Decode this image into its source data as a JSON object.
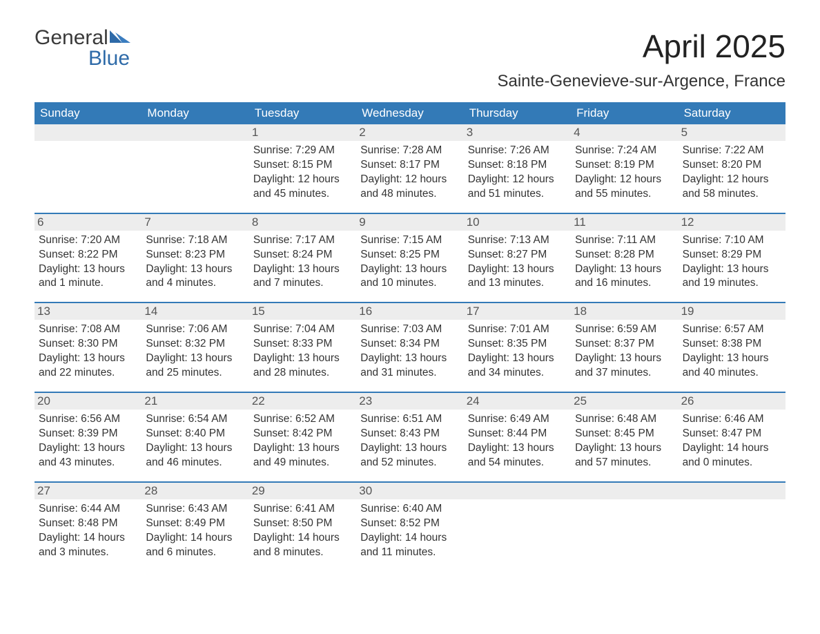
{
  "logo": {
    "word1": "General",
    "word2": "Blue",
    "mark_color": "#2e6aa8"
  },
  "title": "April 2025",
  "location": "Sainte-Genevieve-sur-Argence, France",
  "header_bg": "#337ab7",
  "header_text_color": "#ffffff",
  "date_bar_bg": "#ededed",
  "text_color": "#333333",
  "day_names": [
    "Sunday",
    "Monday",
    "Tuesday",
    "Wednesday",
    "Thursday",
    "Friday",
    "Saturday"
  ],
  "weeks": [
    [
      {
        "date": "",
        "sunrise": "",
        "sunset": "",
        "daylight": ""
      },
      {
        "date": "",
        "sunrise": "",
        "sunset": "",
        "daylight": ""
      },
      {
        "date": "1",
        "sunrise": "Sunrise: 7:29 AM",
        "sunset": "Sunset: 8:15 PM",
        "daylight": "Daylight: 12 hours and 45 minutes."
      },
      {
        "date": "2",
        "sunrise": "Sunrise: 7:28 AM",
        "sunset": "Sunset: 8:17 PM",
        "daylight": "Daylight: 12 hours and 48 minutes."
      },
      {
        "date": "3",
        "sunrise": "Sunrise: 7:26 AM",
        "sunset": "Sunset: 8:18 PM",
        "daylight": "Daylight: 12 hours and 51 minutes."
      },
      {
        "date": "4",
        "sunrise": "Sunrise: 7:24 AM",
        "sunset": "Sunset: 8:19 PM",
        "daylight": "Daylight: 12 hours and 55 minutes."
      },
      {
        "date": "5",
        "sunrise": "Sunrise: 7:22 AM",
        "sunset": "Sunset: 8:20 PM",
        "daylight": "Daylight: 12 hours and 58 minutes."
      }
    ],
    [
      {
        "date": "6",
        "sunrise": "Sunrise: 7:20 AM",
        "sunset": "Sunset: 8:22 PM",
        "daylight": "Daylight: 13 hours and 1 minute."
      },
      {
        "date": "7",
        "sunrise": "Sunrise: 7:18 AM",
        "sunset": "Sunset: 8:23 PM",
        "daylight": "Daylight: 13 hours and 4 minutes."
      },
      {
        "date": "8",
        "sunrise": "Sunrise: 7:17 AM",
        "sunset": "Sunset: 8:24 PM",
        "daylight": "Daylight: 13 hours and 7 minutes."
      },
      {
        "date": "9",
        "sunrise": "Sunrise: 7:15 AM",
        "sunset": "Sunset: 8:25 PM",
        "daylight": "Daylight: 13 hours and 10 minutes."
      },
      {
        "date": "10",
        "sunrise": "Sunrise: 7:13 AM",
        "sunset": "Sunset: 8:27 PM",
        "daylight": "Daylight: 13 hours and 13 minutes."
      },
      {
        "date": "11",
        "sunrise": "Sunrise: 7:11 AM",
        "sunset": "Sunset: 8:28 PM",
        "daylight": "Daylight: 13 hours and 16 minutes."
      },
      {
        "date": "12",
        "sunrise": "Sunrise: 7:10 AM",
        "sunset": "Sunset: 8:29 PM",
        "daylight": "Daylight: 13 hours and 19 minutes."
      }
    ],
    [
      {
        "date": "13",
        "sunrise": "Sunrise: 7:08 AM",
        "sunset": "Sunset: 8:30 PM",
        "daylight": "Daylight: 13 hours and 22 minutes."
      },
      {
        "date": "14",
        "sunrise": "Sunrise: 7:06 AM",
        "sunset": "Sunset: 8:32 PM",
        "daylight": "Daylight: 13 hours and 25 minutes."
      },
      {
        "date": "15",
        "sunrise": "Sunrise: 7:04 AM",
        "sunset": "Sunset: 8:33 PM",
        "daylight": "Daylight: 13 hours and 28 minutes."
      },
      {
        "date": "16",
        "sunrise": "Sunrise: 7:03 AM",
        "sunset": "Sunset: 8:34 PM",
        "daylight": "Daylight: 13 hours and 31 minutes."
      },
      {
        "date": "17",
        "sunrise": "Sunrise: 7:01 AM",
        "sunset": "Sunset: 8:35 PM",
        "daylight": "Daylight: 13 hours and 34 minutes."
      },
      {
        "date": "18",
        "sunrise": "Sunrise: 6:59 AM",
        "sunset": "Sunset: 8:37 PM",
        "daylight": "Daylight: 13 hours and 37 minutes."
      },
      {
        "date": "19",
        "sunrise": "Sunrise: 6:57 AM",
        "sunset": "Sunset: 8:38 PM",
        "daylight": "Daylight: 13 hours and 40 minutes."
      }
    ],
    [
      {
        "date": "20",
        "sunrise": "Sunrise: 6:56 AM",
        "sunset": "Sunset: 8:39 PM",
        "daylight": "Daylight: 13 hours and 43 minutes."
      },
      {
        "date": "21",
        "sunrise": "Sunrise: 6:54 AM",
        "sunset": "Sunset: 8:40 PM",
        "daylight": "Daylight: 13 hours and 46 minutes."
      },
      {
        "date": "22",
        "sunrise": "Sunrise: 6:52 AM",
        "sunset": "Sunset: 8:42 PM",
        "daylight": "Daylight: 13 hours and 49 minutes."
      },
      {
        "date": "23",
        "sunrise": "Sunrise: 6:51 AM",
        "sunset": "Sunset: 8:43 PM",
        "daylight": "Daylight: 13 hours and 52 minutes."
      },
      {
        "date": "24",
        "sunrise": "Sunrise: 6:49 AM",
        "sunset": "Sunset: 8:44 PM",
        "daylight": "Daylight: 13 hours and 54 minutes."
      },
      {
        "date": "25",
        "sunrise": "Sunrise: 6:48 AM",
        "sunset": "Sunset: 8:45 PM",
        "daylight": "Daylight: 13 hours and 57 minutes."
      },
      {
        "date": "26",
        "sunrise": "Sunrise: 6:46 AM",
        "sunset": "Sunset: 8:47 PM",
        "daylight": "Daylight: 14 hours and 0 minutes."
      }
    ],
    [
      {
        "date": "27",
        "sunrise": "Sunrise: 6:44 AM",
        "sunset": "Sunset: 8:48 PM",
        "daylight": "Daylight: 14 hours and 3 minutes."
      },
      {
        "date": "28",
        "sunrise": "Sunrise: 6:43 AM",
        "sunset": "Sunset: 8:49 PM",
        "daylight": "Daylight: 14 hours and 6 minutes."
      },
      {
        "date": "29",
        "sunrise": "Sunrise: 6:41 AM",
        "sunset": "Sunset: 8:50 PM",
        "daylight": "Daylight: 14 hours and 8 minutes."
      },
      {
        "date": "30",
        "sunrise": "Sunrise: 6:40 AM",
        "sunset": "Sunset: 8:52 PM",
        "daylight": "Daylight: 14 hours and 11 minutes."
      },
      {
        "date": "",
        "sunrise": "",
        "sunset": "",
        "daylight": ""
      },
      {
        "date": "",
        "sunrise": "",
        "sunset": "",
        "daylight": ""
      },
      {
        "date": "",
        "sunrise": "",
        "sunset": "",
        "daylight": ""
      }
    ]
  ]
}
